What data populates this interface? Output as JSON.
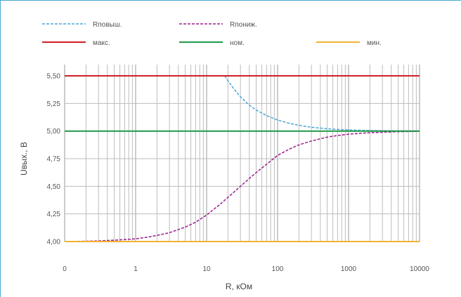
{
  "chart_data": {
    "type": "line",
    "title": "",
    "xlabel": "R, кОм",
    "ylabel": "Uвых., В",
    "x_scale": "log",
    "x_tick_labels": [
      "0",
      "1",
      "10",
      "100",
      "1000",
      "10000"
    ],
    "y_tick_labels": [
      "4,00",
      "4,25",
      "4,50",
      "4,75",
      "5,00",
      "5,25",
      "5,50"
    ],
    "ylim": [
      3.9,
      5.6
    ],
    "xlim": [
      0.1,
      10000
    ],
    "grid": true,
    "legend_position": "top",
    "series": [
      {
        "name": "Rповыш.",
        "color": "#4aa8d8",
        "dash": true,
        "x": [
          18,
          20,
          25,
          30,
          40,
          50,
          70,
          100,
          150,
          200,
          300,
          500,
          700,
          1000,
          2000,
          5000,
          10000
        ],
        "y": [
          5.5,
          5.455,
          5.37,
          5.31,
          5.235,
          5.19,
          5.14,
          5.1,
          5.068,
          5.052,
          5.035,
          5.021,
          5.015,
          5.01,
          5.005,
          5.002,
          5.001
        ]
      },
      {
        "name": "Rпониж.",
        "color": "#9b1f8a",
        "dash": true,
        "x": [
          0.1,
          0.2,
          0.3,
          0.5,
          0.7,
          1,
          1.5,
          2,
          3,
          5,
          7,
          10,
          15,
          20,
          30,
          50,
          70,
          100,
          150,
          200,
          300,
          500,
          700,
          1000,
          2000,
          5000,
          10000
        ],
        "y": [
          4.0,
          4.003,
          4.006,
          4.012,
          4.018,
          4.025,
          4.04,
          4.055,
          4.08,
          4.13,
          4.175,
          4.24,
          4.33,
          4.4,
          4.5,
          4.625,
          4.7,
          4.78,
          4.84,
          4.875,
          4.91,
          4.945,
          4.96,
          4.972,
          4.985,
          4.994,
          4.997
        ]
      },
      {
        "name": "макс.",
        "color": "#d01f26",
        "dash": false,
        "x": [
          0.1,
          10000
        ],
        "y": [
          5.5,
          5.5
        ]
      },
      {
        "name": "ном.",
        "color": "#1f9a48",
        "dash": false,
        "x": [
          0.1,
          10000
        ],
        "y": [
          5.0,
          5.0
        ]
      },
      {
        "name": "мин.",
        "color": "#f2b233",
        "dash": false,
        "x": [
          0.1,
          10000
        ],
        "y": [
          4.0,
          4.0
        ]
      }
    ]
  }
}
